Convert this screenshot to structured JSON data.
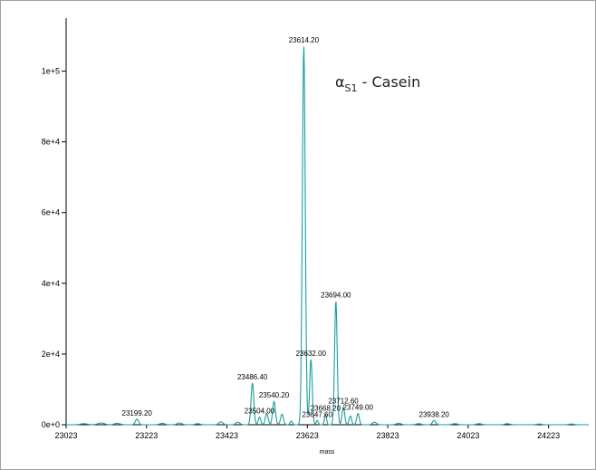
{
  "chart_data": {
    "type": "line",
    "title_symbol": "α",
    "title_subscript": "S1",
    "title_rest": " - Casein",
    "xlabel": "mass",
    "ylabel": "",
    "xlim": [
      23023,
      24323
    ],
    "ylim": [
      0,
      115000
    ],
    "x_ticks": [
      23023,
      23223,
      23423,
      23623,
      23823,
      24023,
      24223
    ],
    "x_tick_labels": [
      "23023",
      "23223",
      "23423",
      "23623",
      "23823",
      "24023",
      "24223"
    ],
    "y_ticks": [
      0,
      20000,
      40000,
      60000,
      80000,
      100000
    ],
    "y_tick_labels": [
      "0e+0",
      "2e+4",
      "4e+4",
      "6e+4",
      "8e+4",
      "1e+5"
    ],
    "line_color": "#1a9e9e",
    "series": [
      {
        "peaks": [
          {
            "x": 23067,
            "y": 300,
            "w": 8
          },
          {
            "x": 23110,
            "y": 500,
            "w": 8
          },
          {
            "x": 23150,
            "y": 400,
            "w": 7
          },
          {
            "x": 23199.2,
            "y": 1600,
            "w": 4
          },
          {
            "x": 23262,
            "y": 400,
            "w": 6
          },
          {
            "x": 23305,
            "y": 500,
            "w": 6
          },
          {
            "x": 23350,
            "y": 300,
            "w": 6
          },
          {
            "x": 23408,
            "y": 800,
            "w": 5
          },
          {
            "x": 23450,
            "y": 700,
            "w": 5
          },
          {
            "x": 23486.4,
            "y": 11800,
            "w": 3.4
          },
          {
            "x": 23504,
            "y": 2200,
            "w": 3
          },
          {
            "x": 23522,
            "y": 3200,
            "w": 3.5
          },
          {
            "x": 23540.2,
            "y": 6600,
            "w": 3.5
          },
          {
            "x": 23560,
            "y": 3000,
            "w": 3.5
          },
          {
            "x": 23583,
            "y": 1000,
            "w": 3
          },
          {
            "x": 23614.2,
            "y": 107000,
            "w": 3.6
          },
          {
            "x": 23632,
            "y": 18500,
            "w": 3.2
          },
          {
            "x": 23647.6,
            "y": 1200,
            "w": 2.5
          },
          {
            "x": 23668.2,
            "y": 3000,
            "w": 2.5
          },
          {
            "x": 23694,
            "y": 35000,
            "w": 3.2
          },
          {
            "x": 23712.6,
            "y": 5000,
            "w": 3.2
          },
          {
            "x": 23730,
            "y": 2500,
            "w": 3
          },
          {
            "x": 23749,
            "y": 3200,
            "w": 3.2
          },
          {
            "x": 23790,
            "y": 700,
            "w": 5
          },
          {
            "x": 23850,
            "y": 400,
            "w": 6
          },
          {
            "x": 23900,
            "y": 300,
            "w": 6
          },
          {
            "x": 23938.2,
            "y": 1200,
            "w": 4
          },
          {
            "x": 23990,
            "y": 300,
            "w": 6
          },
          {
            "x": 24050,
            "y": 300,
            "w": 6
          },
          {
            "x": 24120,
            "y": 300,
            "w": 6
          },
          {
            "x": 24200,
            "y": 200,
            "w": 6
          },
          {
            "x": 24280,
            "y": 200,
            "w": 6
          }
        ]
      }
    ],
    "peak_labels": [
      {
        "x": 23199.2,
        "y": 1600,
        "text": "23199.20"
      },
      {
        "x": 23486.4,
        "y": 11800,
        "text": "23486.40"
      },
      {
        "x": 23504.0,
        "y": 2200,
        "text": "23504.00"
      },
      {
        "x": 23540.2,
        "y": 6600,
        "text": "23540.20"
      },
      {
        "x": 23614.2,
        "y": 107000,
        "text": "23614.20"
      },
      {
        "x": 23632.0,
        "y": 18500,
        "text": "23632.00"
      },
      {
        "x": 23647.6,
        "y": 1200,
        "text": "23647.60"
      },
      {
        "x": 23668.2,
        "y": 3000,
        "text": "23668.20"
      },
      {
        "x": 23694.0,
        "y": 35000,
        "text": "23694.00"
      },
      {
        "x": 23712.6,
        "y": 5000,
        "text": "23712.60"
      },
      {
        "x": 23749.0,
        "y": 3200,
        "text": "23749.00"
      },
      {
        "x": 23938.2,
        "y": 1200,
        "text": "23938.20"
      }
    ]
  }
}
